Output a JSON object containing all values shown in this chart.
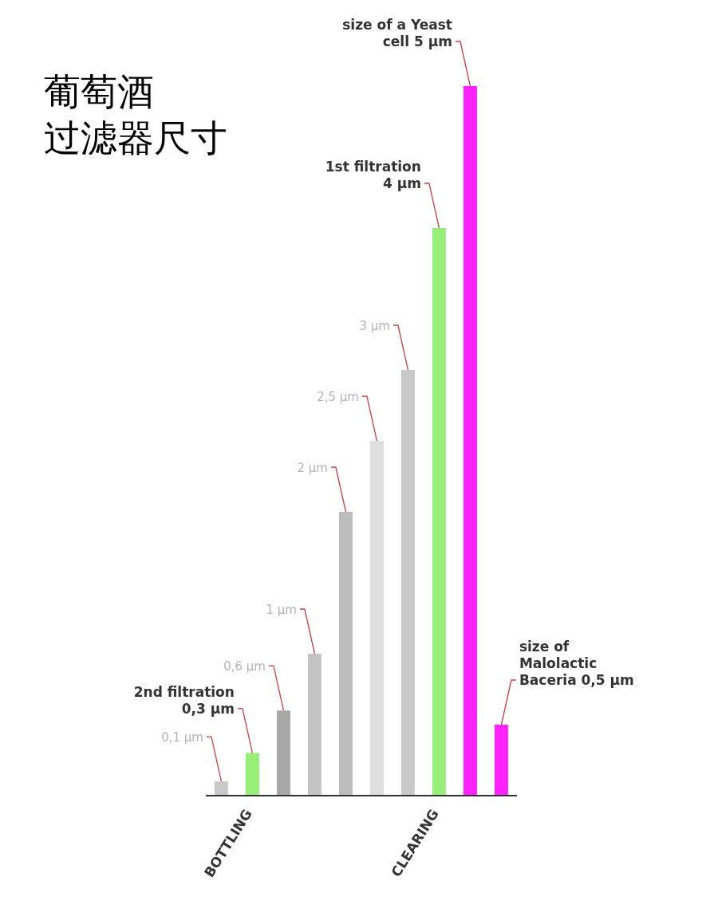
{
  "chart_data": {
    "type": "bar",
    "title": "葡萄酒过滤器尺寸",
    "categories": [
      null,
      "BOTTLING",
      null,
      null,
      null,
      null,
      null,
      "CLEARING",
      null,
      null
    ],
    "values": [
      0.1,
      0.3,
      0.6,
      1,
      2,
      2.5,
      3,
      4,
      5,
      0.5
    ],
    "colors": [
      "#c8c8c8",
      "#96f078",
      "#a8a8a8",
      "#c4c4c4",
      "#bdbdbd",
      "#dedede",
      "#c8c8c8",
      "#96f078",
      "#ff22ff",
      "#ff22ff"
    ],
    "value_labels": [
      "0,1 µm",
      "2nd filtration 0,3 µm",
      "0,6 µm",
      "1 µm",
      "2 µm",
      "2,5 µm",
      "3 µm",
      "1st filtration 4 µm",
      "size of a Yeast cell 5 µm",
      "size of Malolactic Baceria 0,5 µm"
    ]
  }
}
